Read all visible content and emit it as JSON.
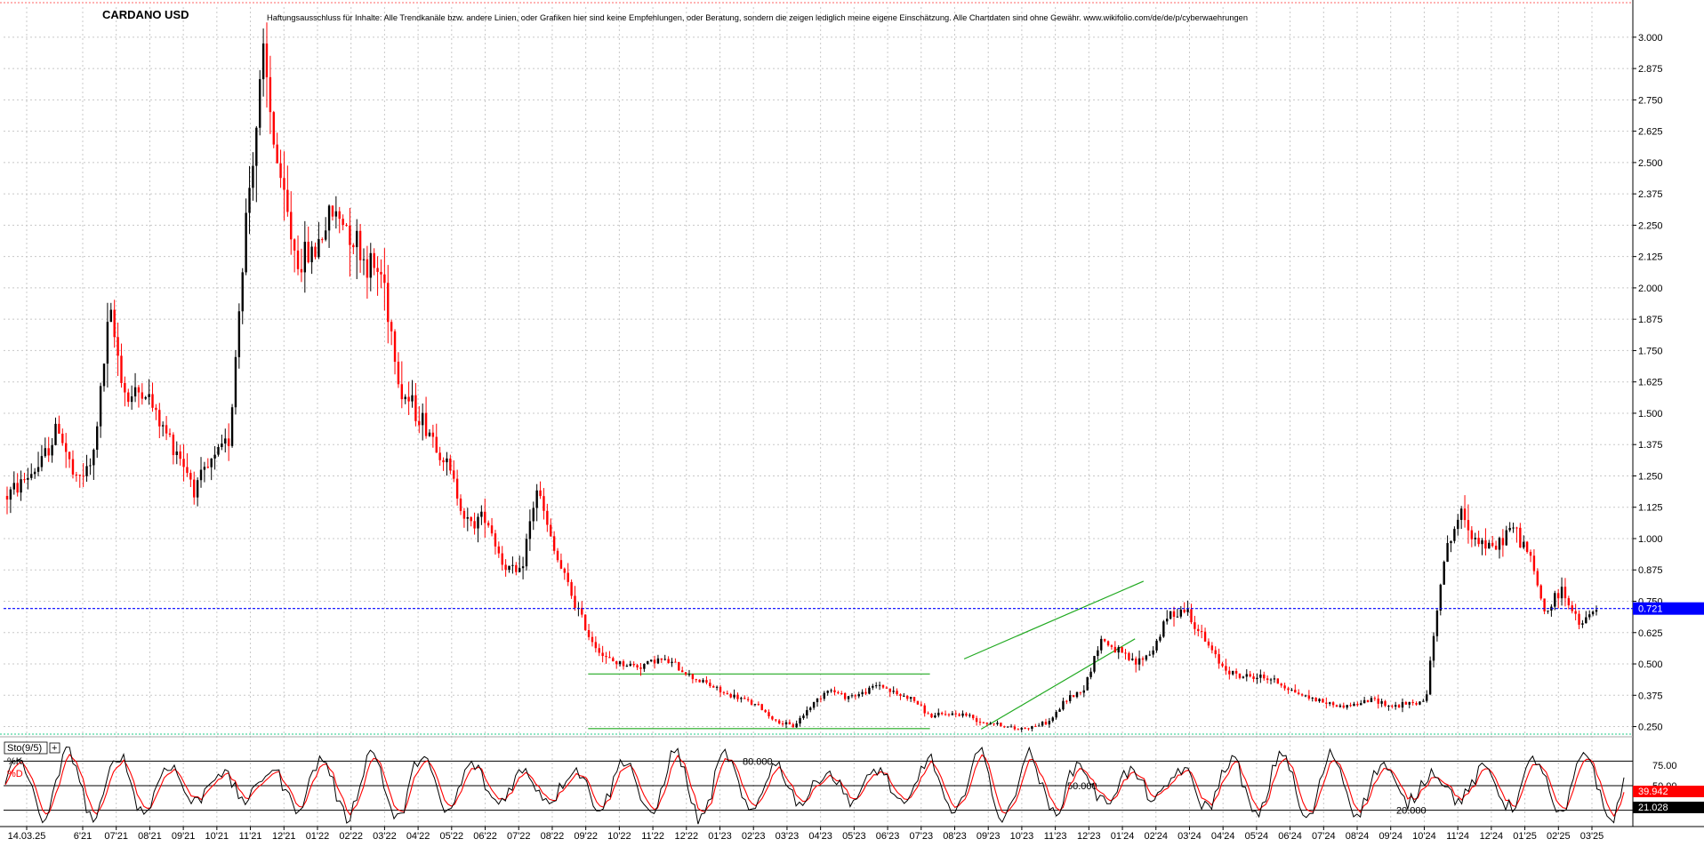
{
  "chart_data": [
    {
      "type": "candlestick",
      "title": "CARDANO USD",
      "disclaimer": "Haftungsausschluss für Inhalte: Alle Trendkanäle bzw. andere Linien, oder Grafiken hier sind keine Empfehlungen, oder Beratung, sondern die zeigen lediglich meine eigene Einschätzung. Alle Chartdaten sind ohne Gewähr. www.wikifolio.com/de/de/p/cyberwaehrungen",
      "ylim": [
        0.22,
        3.12
      ],
      "y_ticks": [
        "3.000",
        "2.875",
        "2.750",
        "2.625",
        "2.500",
        "2.375",
        "2.250",
        "2.125",
        "2.000",
        "1.875",
        "1.750",
        "1.625",
        "1.500",
        "1.375",
        "1.250",
        "1.125",
        "1.000",
        "0.875",
        "0.750",
        "0.625",
        "0.500",
        "0.375",
        "0.250"
      ],
      "x_ticks": [
        "14.03.25",
        "6'21",
        "07'21",
        "08'21",
        "09'21",
        "10'21",
        "11'21",
        "12'21",
        "01'22",
        "02'22",
        "03'22",
        "04'22",
        "05'22",
        "06'22",
        "07'22",
        "08'22",
        "09'22",
        "10'22",
        "11'22",
        "12'22",
        "01'23",
        "02'23",
        "03'23",
        "04'23",
        "05'23",
        "06'23",
        "07'23",
        "08'23",
        "09'23",
        "10'23",
        "11'23",
        "12'23",
        "01'24",
        "02'24",
        "03'24",
        "04'24",
        "05'24",
        "06'24",
        "07'24",
        "08'24",
        "09'24",
        "10'24",
        "11'24",
        "12'24",
        "01'25",
        "02'25",
        "03'25"
      ],
      "current_price_label": "0.721",
      "current_price": 0.721,
      "colors": {
        "up": "#000000",
        "down": "#ff0000",
        "trendline": "#22aa22",
        "price_line": "#0000ff",
        "price_box": "#0000ff"
      },
      "price_path": [
        [
          0,
          1.17
        ],
        [
          2,
          1.3
        ],
        [
          3,
          1.45
        ],
        [
          4,
          1.22
        ],
        [
          5,
          1.3
        ],
        [
          6,
          1.9
        ],
        [
          7,
          1.55
        ],
        [
          8,
          1.6
        ],
        [
          9,
          1.45
        ],
        [
          10,
          1.35
        ],
        [
          11,
          1.2
        ],
        [
          12,
          1.3
        ],
        [
          13,
          1.4
        ],
        [
          14,
          2.3
        ],
        [
          15,
          2.9
        ],
        [
          16,
          2.4
        ],
        [
          17,
          2.1
        ],
        [
          18,
          2.15
        ],
        [
          19,
          2.3
        ],
        [
          20,
          2.25
        ],
        [
          21,
          2.1
        ],
        [
          22,
          2.05
        ],
        [
          23,
          1.6
        ],
        [
          24,
          1.5
        ],
        [
          25,
          1.4
        ],
        [
          26,
          1.25
        ],
        [
          27,
          1.05
        ],
        [
          28,
          1.1
        ],
        [
          29,
          0.9
        ],
        [
          30,
          0.85
        ],
        [
          31,
          1.2
        ],
        [
          32,
          0.95
        ],
        [
          33,
          0.78
        ],
        [
          34,
          0.62
        ],
        [
          35,
          0.52
        ],
        [
          36,
          0.5
        ],
        [
          37,
          0.49
        ],
        [
          38,
          0.52
        ],
        [
          39,
          0.5
        ],
        [
          40,
          0.45
        ],
        [
          41,
          0.42
        ],
        [
          42,
          0.38
        ],
        [
          43,
          0.36
        ],
        [
          44,
          0.33
        ],
        [
          45,
          0.27
        ],
        [
          46,
          0.25
        ],
        [
          47,
          0.33
        ],
        [
          48,
          0.4
        ],
        [
          49,
          0.37
        ],
        [
          50,
          0.38
        ],
        [
          51,
          0.42
        ],
        [
          52,
          0.38
        ],
        [
          53,
          0.36
        ],
        [
          54,
          0.29
        ],
        [
          55,
          0.3
        ],
        [
          56,
          0.3
        ],
        [
          57,
          0.27
        ],
        [
          58,
          0.26
        ],
        [
          59,
          0.24
        ],
        [
          60,
          0.25
        ],
        [
          61,
          0.27
        ],
        [
          62,
          0.36
        ],
        [
          63,
          0.4
        ],
        [
          64,
          0.6
        ],
        [
          65,
          0.55
        ],
        [
          66,
          0.5
        ],
        [
          67,
          0.55
        ],
        [
          68,
          0.7
        ],
        [
          69,
          0.72
        ],
        [
          70,
          0.6
        ],
        [
          71,
          0.5
        ],
        [
          72,
          0.45
        ],
        [
          73,
          0.45
        ],
        [
          74,
          0.44
        ],
        [
          75,
          0.4
        ],
        [
          76,
          0.37
        ],
        [
          77,
          0.35
        ],
        [
          78,
          0.33
        ],
        [
          79,
          0.34
        ],
        [
          80,
          0.36
        ],
        [
          81,
          0.33
        ],
        [
          82,
          0.34
        ],
        [
          83,
          0.35
        ],
        [
          84,
          0.9
        ],
        [
          85,
          1.1
        ],
        [
          86,
          1.0
        ],
        [
          87,
          0.95
        ],
        [
          88,
          1.05
        ],
        [
          89,
          0.95
        ],
        [
          90,
          0.7
        ],
        [
          91,
          0.8
        ],
        [
          92,
          0.65
        ],
        [
          93,
          0.72
        ]
      ],
      "trendlines": [
        {
          "from": [
            34.0,
            0.46
          ],
          "to": [
            54.0,
            0.46
          ]
        },
        {
          "from": [
            34.0,
            0.242
          ],
          "to": [
            54.0,
            0.242
          ]
        },
        {
          "from": [
            56.0,
            0.52
          ],
          "to": [
            66.5,
            0.83
          ]
        },
        {
          "from": [
            57.0,
            0.24
          ],
          "to": [
            66.0,
            0.6
          ]
        }
      ],
      "stochastic": {
        "label": "Sto(9/5)",
        "series": [
          "%K",
          "%D"
        ],
        "levels": [
          80,
          50,
          20
        ],
        "level_labels": [
          "80.000",
          "50.000",
          "20.000"
        ],
        "right_ticks": [
          "75.00",
          "50.00"
        ],
        "k_value_label": "39.942",
        "d_value_label": "21.028"
      }
    }
  ]
}
